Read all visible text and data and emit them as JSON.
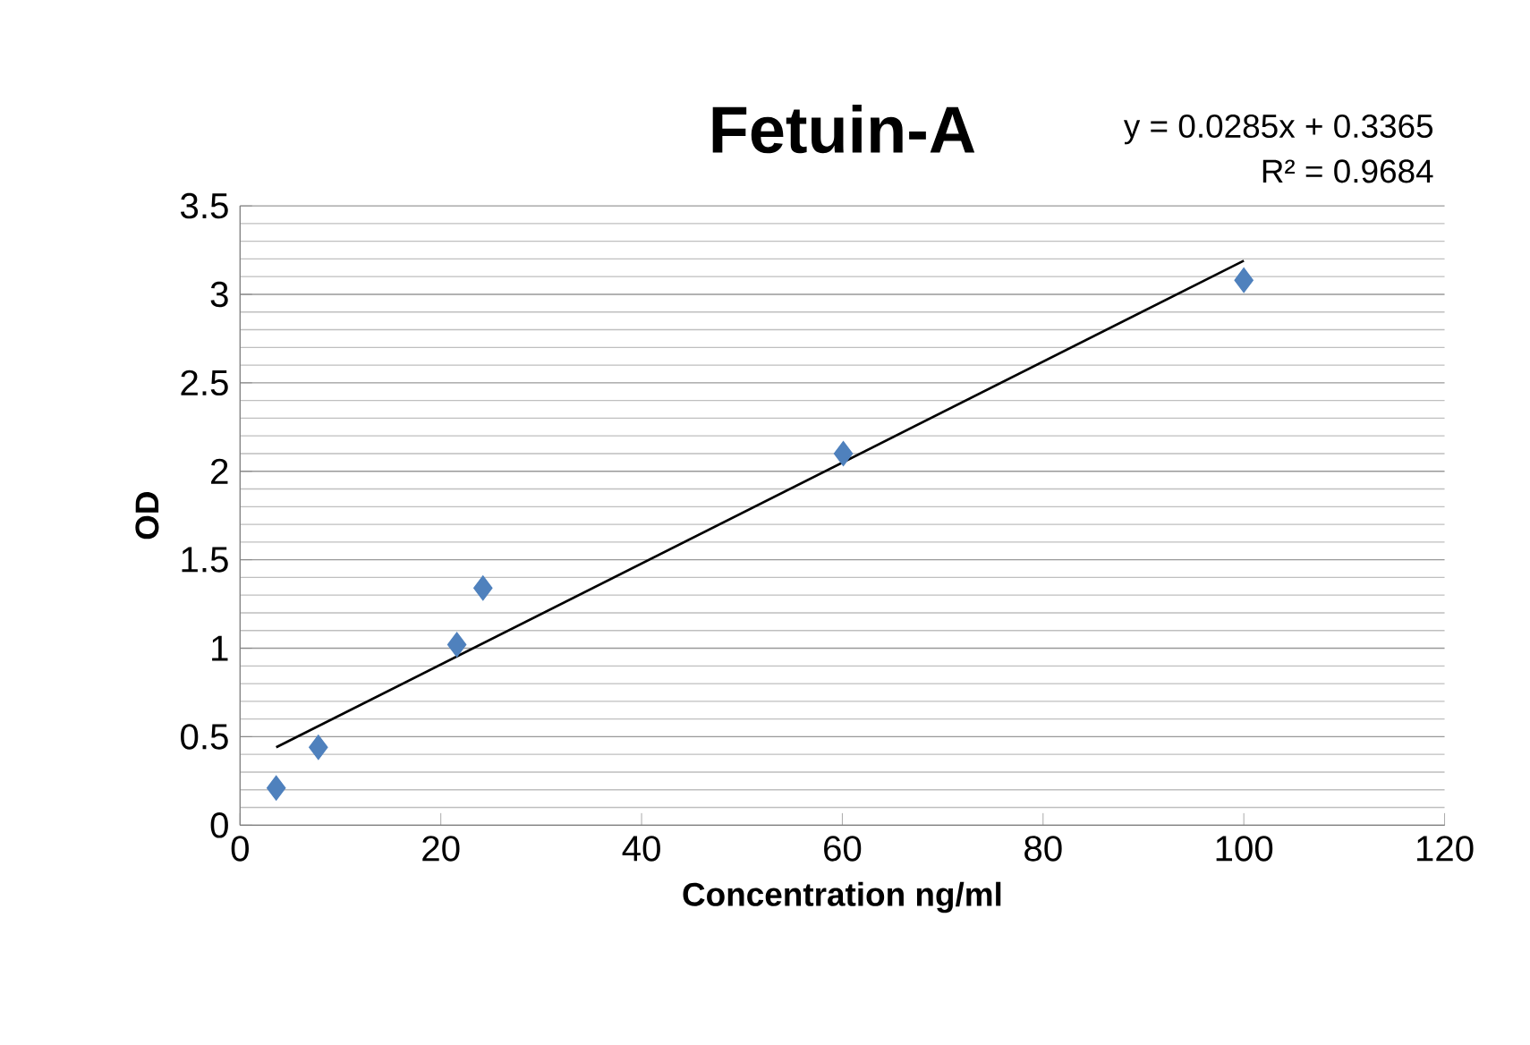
{
  "chart_data": {
    "type": "scatter",
    "title": "Fetuin-A",
    "xlabel": "Concentration ng/ml",
    "ylabel": "OD",
    "annotations": [
      "y = 0.0285x + 0.3365",
      "R² = 0.9684"
    ],
    "xlim": [
      0,
      120
    ],
    "xticks": [
      0,
      20,
      40,
      60,
      80,
      100,
      120
    ],
    "ylim": [
      0,
      3.5
    ],
    "yticks": [
      0,
      0.5,
      1,
      1.5,
      2,
      2.5,
      3,
      3.5
    ],
    "grid": "y",
    "marker": "diamond",
    "series": [
      {
        "color": "#4f81bd",
        "x": [
          3.6,
          7.8,
          21.6,
          24.2,
          60.1,
          100
        ],
        "values": [
          0.21,
          0.44,
          1.02,
          1.34,
          2.1,
          3.08
        ]
      },
      {
        "type": "line",
        "color": "#000000",
        "marker": "none",
        "line_style": "solid",
        "x": [
          3.6,
          100
        ],
        "values": [
          0.44,
          3.19
        ]
      }
    ]
  }
}
